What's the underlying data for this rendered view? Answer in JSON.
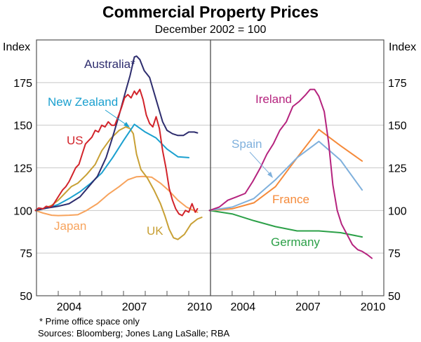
{
  "chart_data": {
    "type": "line",
    "title": "Commercial Property Prices",
    "subtitle": "December 2002 = 100",
    "ylabel_left": "Index",
    "ylabel_right": "Index",
    "ylim": [
      50,
      200
    ],
    "yticks": [
      50,
      75,
      100,
      125,
      150,
      175
    ],
    "xlim": [
      2003,
      2011
    ],
    "xtick_labels": [
      "2004",
      "2007",
      "2010"
    ],
    "grid": true,
    "footnotes": [
      "*  Prime office space only",
      "Sources: Bloomberg; Jones Lang LaSalle; RBA"
    ],
    "panels": [
      {
        "name": "left",
        "series": [
          {
            "name": "Japan",
            "label": "Japan",
            "color": "#f7a35c",
            "x": [
              2002.95,
              2003.3,
              2003.7,
              2004.0,
              2004.5,
              2004.9,
              2005.3,
              2005.8,
              2006.3,
              2006.8,
              2007.2,
              2007.6,
              2007.9,
              2008.3,
              2008.7,
              2009.1,
              2009.5,
              2009.9,
              2010.4
            ],
            "y": [
              100,
              98.5,
              97.2,
              97,
              97.2,
              97.5,
              100,
              104,
              109.5,
              114,
              118,
              119.8,
              120,
              119.5,
              116,
              111.5,
              106,
              102,
              99
            ]
          },
          {
            "name": "UK",
            "label": "UK",
            "color": "#c8a035",
            "x": [
              2002.95,
              2003.3,
              2003.7,
              2004.0,
              2004.3,
              2004.6,
              2004.9,
              2005.3,
              2005.7,
              2006.0,
              2006.4,
              2006.8,
              2007.1,
              2007.3,
              2007.45,
              2007.6,
              2007.8,
              2008.1,
              2008.4,
              2008.7,
              2008.9,
              2009.1,
              2009.3,
              2009.5,
              2009.8,
              2010.1,
              2010.4,
              2010.6
            ],
            "y": [
              100,
              101,
              103,
              106,
              110,
              114,
              116,
              121,
              127,
              135,
              142,
              147,
              149,
              148,
              145,
              133,
              124,
              119,
              112,
              104,
              97,
              89,
              84,
              83,
              86,
              92,
              95,
              96
            ]
          },
          {
            "name": "New Zealand",
            "label": "New Zealand",
            "color": "#1ba0cf",
            "x": [
              2002.95,
              2003.5,
              2004.0,
              2004.5,
              2005.0,
              2005.5,
              2006.0,
              2006.5,
              2007.0,
              2007.5,
              2008.0,
              2008.5,
              2009.0,
              2009.5,
              2010.0
            ],
            "y": [
              100,
              101.5,
              103.5,
              107,
              111,
              116,
              122,
              131,
              141,
              150.5,
              146,
              142.5,
              136,
              131.5,
              131
            ]
          },
          {
            "name": "Australia",
            "label": "Australia*",
            "color": "#2e2d6e",
            "x": [
              2002.95,
              2003.5,
              2004.0,
              2004.5,
              2005.0,
              2005.4,
              2005.8,
              2006.2,
              2006.5,
              2006.8,
              2007.1,
              2007.3,
              2007.5,
              2007.6,
              2007.75,
              2007.95,
              2008.2,
              2008.5,
              2008.8,
              2009.0,
              2009.25,
              2009.5,
              2009.75,
              2010.0,
              2010.25,
              2010.4
            ],
            "y": [
              100,
              101.5,
              102.5,
              104,
              108,
              114,
              120,
              131,
              143,
              156,
              170,
              179,
              190,
              190.5,
              188.5,
              182,
              178,
              165,
              152,
              147,
              145,
              144,
              144,
              146,
              146,
              145.5
            ]
          },
          {
            "name": "US",
            "label": "US",
            "color": "#d2232a",
            "x": [
              2002.95,
              2003.1,
              2003.3,
              2003.45,
              2003.6,
              2003.75,
              2003.9,
              2004.05,
              2004.2,
              2004.35,
              2004.5,
              2004.65,
              2004.8,
              2004.95,
              2005.1,
              2005.25,
              2005.4,
              2005.55,
              2005.7,
              2005.85,
              2006.0,
              2006.15,
              2006.3,
              2006.45,
              2006.6,
              2006.75,
              2006.9,
              2007.05,
              2007.2,
              2007.35,
              2007.5,
              2007.6,
              2007.75,
              2007.9,
              2008.05,
              2008.2,
              2008.35,
              2008.5,
              2008.65,
              2008.8,
              2008.95,
              2009.1,
              2009.25,
              2009.4,
              2009.55,
              2009.7,
              2009.85,
              2010.0,
              2010.15,
              2010.3,
              2010.4
            ],
            "y": [
              100,
              101.5,
              101,
              102.5,
              102,
              103,
              106,
              109,
              112,
              114,
              117,
              121,
              125,
              127,
              133,
              139,
              141,
              143,
              147,
              146,
              150,
              149,
              152,
              150,
              150,
              155,
              160,
              166,
              168,
              166,
              170,
              168,
              171,
              165,
              156,
              151,
              149,
              155,
              148,
              135,
              125,
              113,
              106,
              101,
              98,
              97,
              100,
              99,
              104,
              99,
              101
            ]
          }
        ],
        "annotations": [
          {
            "text": "Australia*",
            "series": "Australia"
          },
          {
            "text": "New Zealand",
            "series": "New Zealand",
            "arrow": true
          },
          {
            "text": "US",
            "series": "US"
          },
          {
            "text": "Japan",
            "series": "Japan"
          },
          {
            "text": "UK",
            "series": "UK"
          }
        ]
      },
      {
        "name": "right",
        "series": [
          {
            "name": "Germany",
            "label": "Germany",
            "color": "#2ca048",
            "x": [
              2002.95,
              2004.0,
              2005.0,
              2006.0,
              2007.0,
              2008.0,
              2009.0,
              2010.0
            ],
            "y": [
              100,
              98,
              94,
              90.5,
              88,
              88,
              87,
              84.5
            ]
          },
          {
            "name": "France",
            "label": "France",
            "color": "#f58a3a",
            "x": [
              2002.95,
              2004.0,
              2005.0,
              2006.0,
              2007.0,
              2008.0,
              2009.0,
              2010.0
            ],
            "y": [
              100,
              101,
              104.5,
              114,
              131,
              147.5,
              138,
              129
            ]
          },
          {
            "name": "Spain",
            "label": "Spain",
            "color": "#7fb0dc",
            "x": [
              2002.95,
              2004.0,
              2005.0,
              2006.0,
              2007.0,
              2008.0,
              2009.0,
              2010.0
            ],
            "y": [
              100,
              102,
              107,
              118,
              131,
              140.5,
              129.5,
              112
            ]
          },
          {
            "name": "Ireland",
            "label": "Ireland",
            "color": "#b5237e",
            "x": [
              2002.95,
              2003.4,
              2003.8,
              2004.2,
              2004.6,
              2004.95,
              2005.3,
              2005.6,
              2005.9,
              2006.2,
              2006.5,
              2006.8,
              2007.1,
              2007.4,
              2007.6,
              2007.8,
              2008.0,
              2008.25,
              2008.45,
              2008.65,
              2008.85,
              2009.05,
              2009.3,
              2009.55,
              2009.8,
              2010.0,
              2010.25,
              2010.45
            ],
            "y": [
              100,
              102,
              106,
              108,
              110,
              117,
              125,
              133,
              139,
              147,
              152,
              161,
              164,
              168,
              171,
              171,
              167,
              158,
              140,
              115,
              100,
              92,
              86,
              80,
              77,
              76,
              74,
              72
            ]
          }
        ],
        "annotations": [
          {
            "text": "Ireland",
            "series": "Ireland"
          },
          {
            "text": "Spain",
            "series": "Spain",
            "arrow": true
          },
          {
            "text": "France",
            "series": "France"
          },
          {
            "text": "Germany",
            "series": "Germany"
          }
        ]
      }
    ]
  }
}
